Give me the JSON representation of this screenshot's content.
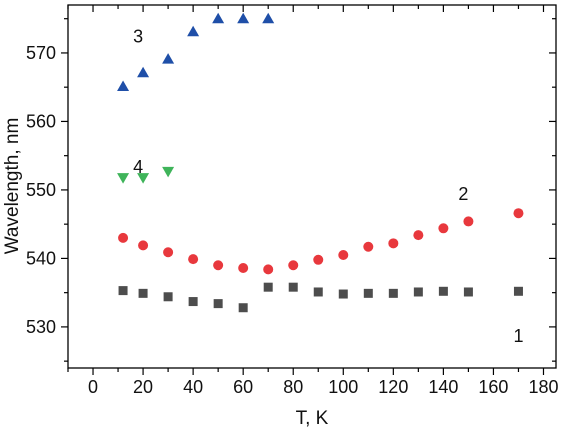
{
  "chart_data": {
    "type": "scatter",
    "title": "",
    "xlabel": "T, K",
    "ylabel": "Wavelength, nm",
    "xlim": [
      -10,
      185
    ],
    "ylim": [
      524,
      577
    ],
    "xticks": [
      0,
      20,
      40,
      60,
      80,
      100,
      120,
      140,
      160,
      180
    ],
    "yticks": [
      530,
      540,
      550,
      560,
      570
    ],
    "grid": false,
    "legend": "none",
    "series": [
      {
        "label": "1",
        "marker": "square",
        "color": "#4d4d4d",
        "x": [
          12,
          20,
          30,
          40,
          50,
          60,
          70,
          80,
          90,
          100,
          110,
          120,
          130,
          140,
          150,
          170
        ],
        "y": [
          535.3,
          534.9,
          534.4,
          533.7,
          533.4,
          532.8,
          535.8,
          535.8,
          535.1,
          534.8,
          534.9,
          534.9,
          535.1,
          535.2,
          535.1,
          535.2
        ]
      },
      {
        "label": "2",
        "marker": "circle",
        "color": "#e8383d",
        "x": [
          12,
          20,
          30,
          40,
          50,
          60,
          70,
          80,
          90,
          100,
          110,
          120,
          130,
          140,
          150,
          170
        ],
        "y": [
          543.0,
          541.9,
          540.9,
          539.9,
          539.0,
          538.6,
          538.4,
          539.0,
          539.8,
          540.5,
          541.7,
          542.2,
          543.4,
          544.4,
          545.4,
          546.6
        ]
      },
      {
        "label": "3",
        "marker": "triangle-up",
        "color": "#1f4fa8",
        "x": [
          12,
          20,
          30,
          40,
          50,
          60,
          70
        ],
        "y": [
          565.1,
          567.1,
          569.1,
          573.1,
          575.0,
          575.0,
          575.0
        ]
      },
      {
        "label": "4",
        "marker": "triangle-down",
        "color": "#3fb45a",
        "x": [
          12,
          20,
          30
        ],
        "y": [
          551.8,
          551.8,
          552.7
        ]
      }
    ]
  }
}
